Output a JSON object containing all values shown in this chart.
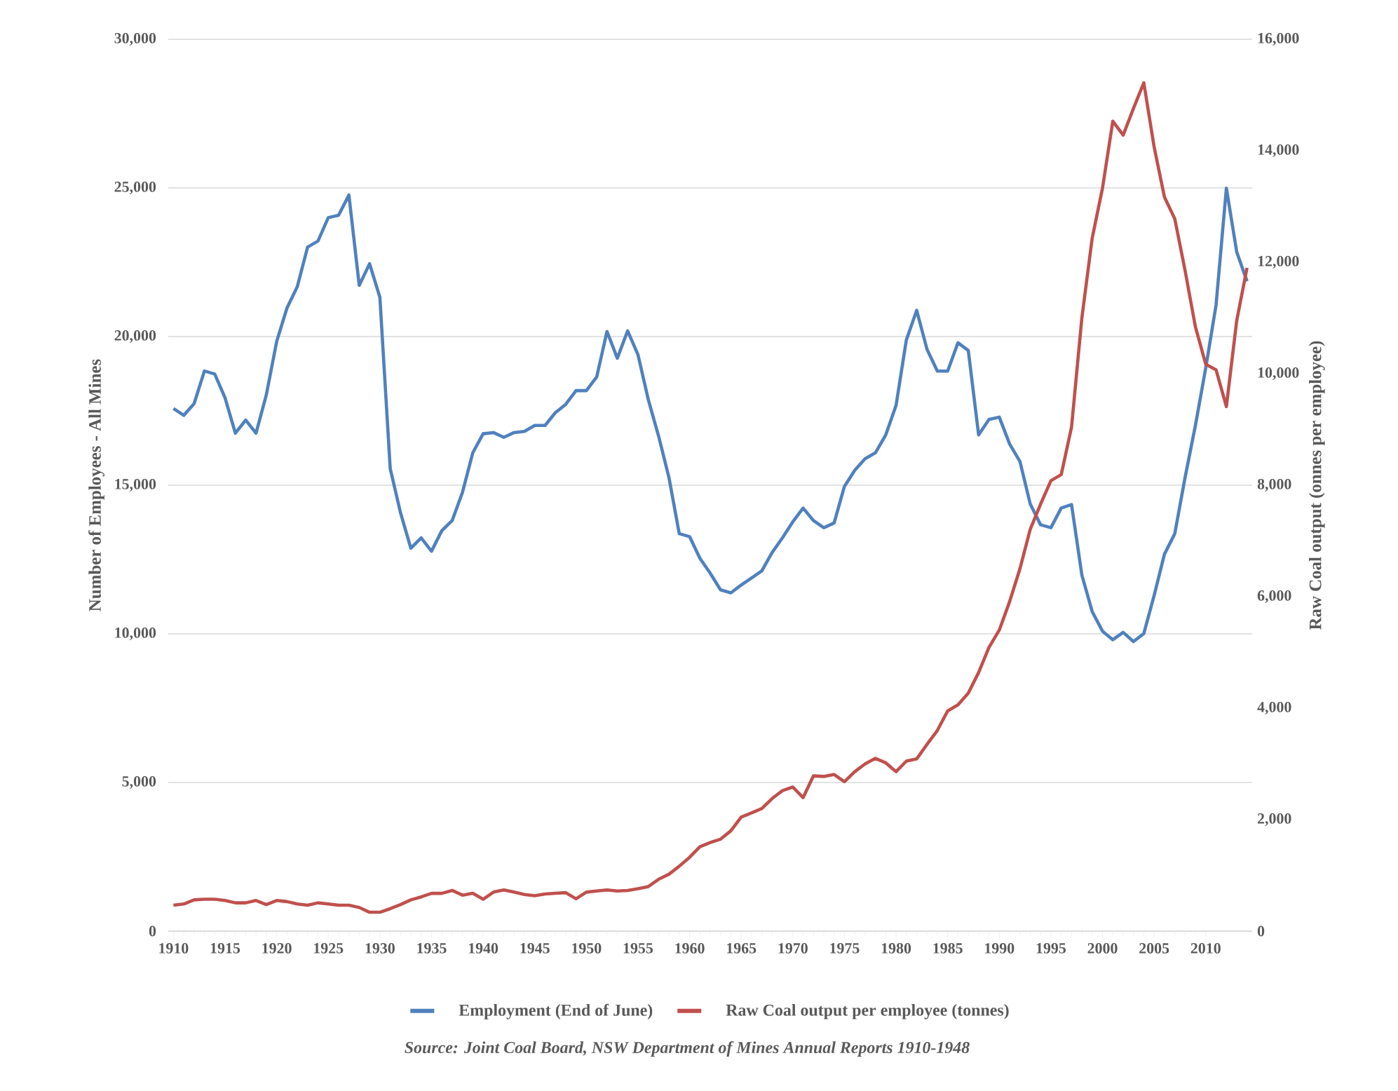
{
  "chart_data": {
    "type": "line",
    "ylabel": "Number of Employees - All Mines",
    "y2label": "Raw Coal output (onnes per employee)",
    "annotations": [
      "Source: Joint Coal Board, NSW Department of Mines Annual Reports 1910-1948"
    ],
    "x": [
      1910,
      1911,
      1912,
      1913,
      1914,
      1915,
      1916,
      1917,
      1918,
      1919,
      1920,
      1921,
      1922,
      1923,
      1924,
      1925,
      1926,
      1927,
      1928,
      1929,
      1930,
      1931,
      1932,
      1933,
      1934,
      1935,
      1936,
      1937,
      1938,
      1939,
      1940,
      1941,
      1942,
      1943,
      1944,
      1945,
      1946,
      1947,
      1948,
      1949,
      1950,
      1951,
      1952,
      1953,
      1954,
      1955,
      1956,
      1957,
      1958,
      1959,
      1960,
      1961,
      1962,
      1963,
      1964,
      1965,
      1966,
      1967,
      1968,
      1969,
      1970,
      1971,
      1972,
      1973,
      1974,
      1975,
      1976,
      1977,
      1978,
      1979,
      1980,
      1981,
      1982,
      1983,
      1984,
      1985,
      1986,
      1987,
      1988,
      1989,
      1990,
      1991,
      1992,
      1993,
      1994,
      1995,
      1996,
      1997,
      1998,
      1999,
      2000,
      2001,
      2002,
      2003,
      2004,
      2005,
      2006,
      2007,
      2008,
      2009,
      2010,
      2011,
      2012,
      2013,
      2014
    ],
    "series": [
      {
        "name": "Employment (End of June)",
        "color": "#4f81bd",
        "values": [
          17580,
          17350,
          17740,
          18840,
          18740,
          17940,
          16750,
          17190,
          16750,
          18040,
          19830,
          20960,
          21680,
          23010,
          23210,
          24000,
          24080,
          24760,
          21720,
          22450,
          21320,
          15560,
          14070,
          12880,
          13230,
          12780,
          13470,
          13810,
          14760,
          16090,
          16730,
          16770,
          16610,
          16770,
          16810,
          17010,
          17010,
          17440,
          17720,
          18180,
          18180,
          18640,
          20170,
          19270,
          20190,
          19390,
          17880,
          16650,
          15260,
          13370,
          13270,
          12540,
          12040,
          11480,
          11380,
          11640,
          11880,
          12120,
          12740,
          13230,
          13770,
          14230,
          13810,
          13570,
          13730,
          14960,
          15500,
          15890,
          16090,
          16690,
          17680,
          19890,
          20880,
          19570,
          18840,
          18840,
          19790,
          19530,
          16690,
          17210,
          17290,
          16390,
          15800,
          14370,
          13670,
          13570,
          14230,
          14350,
          11980,
          10750,
          10090,
          9800,
          10050,
          9740,
          10010,
          11290,
          12680,
          13370,
          15260,
          17010,
          18940,
          21060,
          24990,
          22850,
          21860
        ]
      },
      {
        "name": "Raw Coal output per employee (tonnes)",
        "color": "#c0504d",
        "axis": "y2",
        "values": [
          466,
          487,
          561,
          572,
          572,
          550,
          508,
          508,
          550,
          477,
          550,
          530,
          487,
          466,
          508,
          487,
          466,
          466,
          424,
          339,
          339,
          403,
          477,
          561,
          614,
          678,
          678,
          730,
          646,
          678,
          572,
          700,
          740,
          700,
          657,
          636,
          667,
          680,
          690,
          580,
          700,
          720,
          740,
          720,
          730,
          760,
          800,
          930,
          1020,
          1165,
          1325,
          1515,
          1590,
          1650,
          1800,
          2045,
          2120,
          2200,
          2380,
          2520,
          2585,
          2395,
          2785,
          2775,
          2810,
          2680,
          2860,
          3000,
          3100,
          3020,
          2860,
          3050,
          3090,
          3350,
          3600,
          3950,
          4060,
          4270,
          4640,
          5090,
          5400,
          5910,
          6500,
          7210,
          7660,
          8080,
          8190,
          9040,
          11000,
          12430,
          13330,
          14530,
          14280,
          14760,
          15220,
          14070,
          13170,
          12780,
          11850,
          10840,
          10170,
          10070,
          9410,
          10950,
          11900
        ]
      }
    ],
    "xlim": [
      1909.5,
      2014.5
    ],
    "xticks": [
      1910,
      1915,
      1920,
      1925,
      1930,
      1935,
      1940,
      1945,
      1950,
      1955,
      1960,
      1965,
      1970,
      1975,
      1980,
      1985,
      1990,
      1995,
      2000,
      2005,
      2010
    ],
    "ylim": [
      0,
      30000
    ],
    "yticks": [
      0,
      {
        "value": 5000,
        "label": "5,000"
      },
      {
        "value": 10000,
        "label": "10,000"
      },
      {
        "value": 15000,
        "label": "15,000"
      },
      {
        "value": 20000,
        "label": "20,000"
      },
      {
        "value": 25000,
        "label": "25,000"
      },
      {
        "value": 30000,
        "label": "30,000"
      }
    ],
    "y2lim": [
      0,
      16000
    ],
    "y2ticks": [
      0,
      {
        "value": 2000,
        "label": "2,000"
      },
      {
        "value": 4000,
        "label": "4,000"
      },
      {
        "value": 6000,
        "label": "6,000"
      },
      {
        "value": 8000,
        "label": "8,000"
      },
      {
        "value": 10000,
        "label": "10,000"
      },
      {
        "value": 12000,
        "label": "12,000"
      },
      {
        "value": 14000,
        "label": "14,000"
      },
      {
        "value": 16000,
        "label": "16,000"
      }
    ],
    "grid": "y",
    "legend": "bottom"
  }
}
